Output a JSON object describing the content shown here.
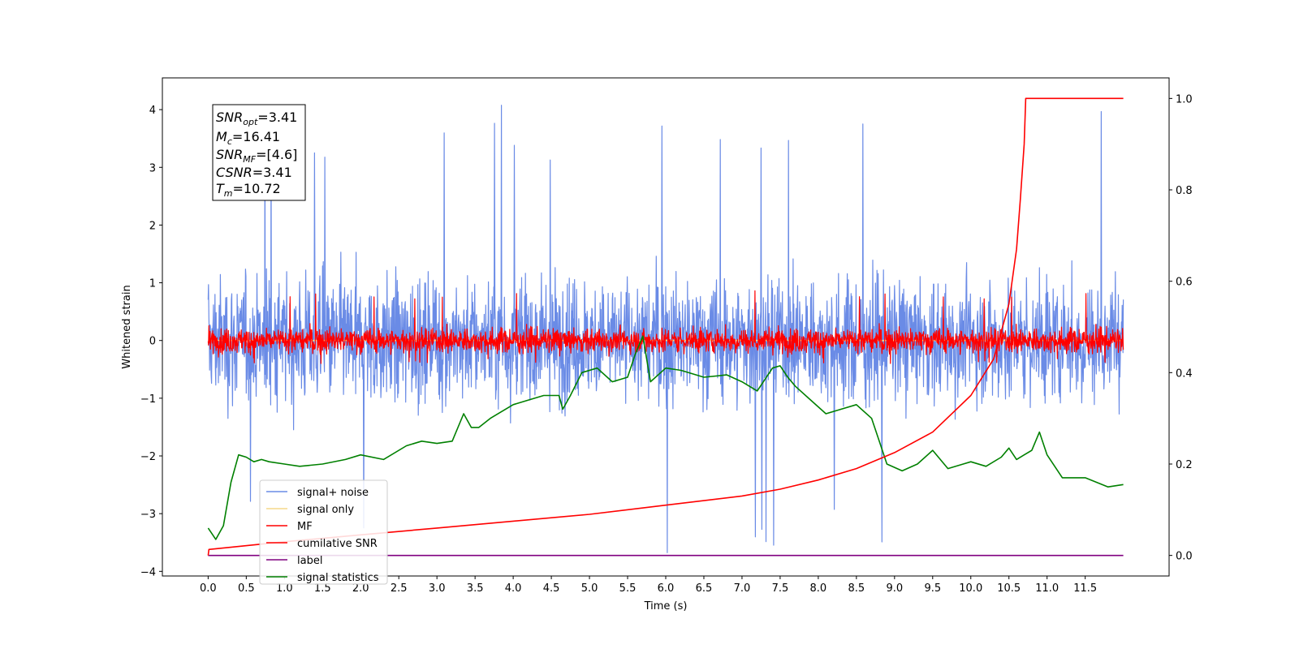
{
  "chart_data": {
    "type": "line",
    "title": "",
    "xlabel": "Time (s)",
    "ylabel_left": "Whitened strain",
    "ylabel_right": "",
    "xlim": [
      -0.6,
      12.6
    ],
    "ylim_left": [
      -4.08,
      4.55
    ],
    "ylim_right": [
      -0.045,
      1.045
    ],
    "x_ticks": [
      0.0,
      0.5,
      1.0,
      1.5,
      2.0,
      2.5,
      3.0,
      3.5,
      4.0,
      4.5,
      5.0,
      5.5,
      6.0,
      6.5,
      7.0,
      7.5,
      8.0,
      8.5,
      9.0,
      9.5,
      10.0,
      10.5,
      11.0,
      11.5
    ],
    "x_tick_labels": [
      "0.0",
      "0.5",
      "1.0",
      "1.5",
      "2.0",
      "2.5",
      "3.0",
      "3.5",
      "4.0",
      "4.5",
      "5.0",
      "5.5",
      "6.0",
      "6.5",
      "7.0",
      "7.5",
      "8.0",
      "8.5",
      "9.0",
      "9.5",
      "10.0",
      "10.5",
      "11.0",
      "11.5"
    ],
    "y_left_ticks": [
      4,
      3,
      2,
      1,
      0,
      -1,
      -2,
      -3,
      -4
    ],
    "y_left_tick_labels": [
      "4",
      "3",
      "2",
      "1",
      "0",
      "−1",
      "−2",
      "−3",
      "−4"
    ],
    "y_right_ticks": [
      1.0,
      0.8,
      0.6,
      0.4,
      0.2,
      0.0
    ],
    "y_right_tick_labels": [
      "1.0",
      "0.8",
      "0.6",
      "0.4",
      "0.2",
      "0.0"
    ],
    "series": [
      {
        "name": "signal+ noise",
        "color": "#6a8be6",
        "axis": "left",
        "kind": "noise",
        "x_range": [
          0,
          12
        ],
        "spread": 1.0,
        "max": 4.15,
        "min": -3.7
      },
      {
        "name": "signal only",
        "color": "#f6d98a",
        "axis": "left",
        "kind": "flat",
        "x_range": [
          0,
          12
        ],
        "value": 0
      },
      {
        "name": "MF",
        "color": "#ff0000",
        "axis": "left",
        "kind": "noise",
        "x_range": [
          0,
          12
        ],
        "spread": 0.2,
        "max": 0.9,
        "min": -0.4
      },
      {
        "name": "cumilative SNR",
        "color": "#ff0000",
        "axis": "right",
        "kind": "curve",
        "x": [
          0,
          0.01,
          1,
          2,
          3,
          4,
          5,
          6,
          7,
          7.5,
          8,
          8.5,
          9,
          9.5,
          10,
          10.3,
          10.5,
          10.6,
          10.65,
          10.7,
          10.72,
          11,
          12
        ],
        "y": [
          0.0,
          0.013,
          0.03,
          0.045,
          0.06,
          0.075,
          0.09,
          0.11,
          0.13,
          0.145,
          0.165,
          0.19,
          0.225,
          0.27,
          0.35,
          0.43,
          0.55,
          0.67,
          0.78,
          0.9,
          1.0,
          1.0,
          1.0
        ]
      },
      {
        "name": "label",
        "color": "#800080",
        "axis": "right",
        "kind": "curve",
        "x": [
          0,
          12
        ],
        "y": [
          0.0,
          0.0
        ]
      },
      {
        "name": "signal statistics",
        "color": "#008000",
        "axis": "right",
        "kind": "curve",
        "x": [
          0,
          0.1,
          0.2,
          0.3,
          0.4,
          0.5,
          0.6,
          0.7,
          0.8,
          1.0,
          1.2,
          1.5,
          1.8,
          2.0,
          2.3,
          2.6,
          2.8,
          3.0,
          3.2,
          3.35,
          3.45,
          3.55,
          3.7,
          3.9,
          4.0,
          4.2,
          4.4,
          4.6,
          4.65,
          4.75,
          4.9,
          5.1,
          5.3,
          5.5,
          5.6,
          5.7,
          5.8,
          6.0,
          6.2,
          6.5,
          6.8,
          7.0,
          7.2,
          7.4,
          7.5,
          7.6,
          7.7,
          7.9,
          8.1,
          8.3,
          8.5,
          8.7,
          8.8,
          8.9,
          9.1,
          9.3,
          9.5,
          9.7,
          9.9,
          10.0,
          10.2,
          10.4,
          10.5,
          10.6,
          10.7,
          10.8,
          10.9,
          11.0,
          11.2,
          11.5,
          11.8,
          12.0
        ],
        "y": [
          0.06,
          0.035,
          0.065,
          0.16,
          0.22,
          0.215,
          0.205,
          0.21,
          0.205,
          0.2,
          0.195,
          0.2,
          0.21,
          0.22,
          0.21,
          0.24,
          0.25,
          0.245,
          0.25,
          0.31,
          0.28,
          0.28,
          0.3,
          0.32,
          0.33,
          0.34,
          0.35,
          0.35,
          0.32,
          0.35,
          0.4,
          0.41,
          0.38,
          0.39,
          0.44,
          0.48,
          0.38,
          0.41,
          0.405,
          0.39,
          0.395,
          0.38,
          0.36,
          0.41,
          0.415,
          0.39,
          0.37,
          0.34,
          0.31,
          0.32,
          0.33,
          0.3,
          0.25,
          0.2,
          0.185,
          0.2,
          0.23,
          0.19,
          0.2,
          0.205,
          0.195,
          0.215,
          0.235,
          0.21,
          0.22,
          0.23,
          0.27,
          0.22,
          0.17,
          0.17,
          0.15,
          0.155
        ]
      }
    ],
    "legend": {
      "position": "lower-left",
      "entries": [
        "signal+ noise",
        "signal only",
        "MF",
        "cumilative SNR",
        "label",
        "signal statistics"
      ]
    },
    "annotation_box": {
      "lines": [
        {
          "sym": "SNR",
          "sub": "opt",
          "val": "=3.41"
        },
        {
          "sym": "M",
          "sub": "c",
          "val": "=16.41"
        },
        {
          "sym": "SNR",
          "sub": "MF",
          "val": "=[4.6]"
        },
        {
          "sym": "CSNR",
          "sub": "",
          "val": "=3.41"
        },
        {
          "sym": "T",
          "sub": "m",
          "val": "=10.72"
        }
      ]
    }
  }
}
